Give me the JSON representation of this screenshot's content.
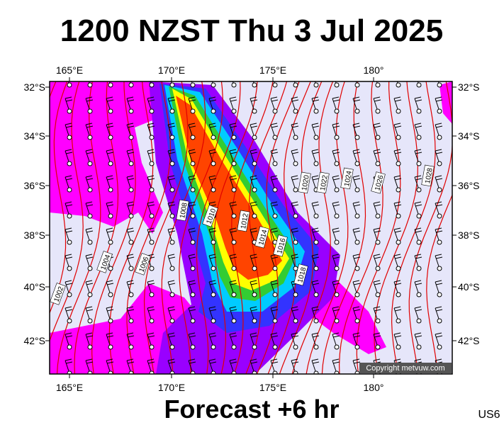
{
  "header": {
    "title": "1200 NZST Thu 3 Jul 2025"
  },
  "map": {
    "top_labels": [
      "165°E",
      "170°E",
      "175°E",
      "180°"
    ],
    "bottom_labels": [
      "165°E",
      "170°E",
      "175°E",
      "180°"
    ],
    "left_labels": [
      "32°S",
      "34°S",
      "36°S",
      "38°S",
      "40°S",
      "42°S"
    ],
    "right_labels": [
      "32°S",
      "34°S",
      "36°S",
      "38°S",
      "40°S",
      "42°S"
    ],
    "isobar_labels": [
      "1002",
      "1004",
      "1006",
      "1008",
      "1010",
      "1012",
      "1014",
      "1016",
      "1018",
      "1020",
      "1022",
      "1024",
      "1026",
      "1028"
    ],
    "copyright": "Copyright metvuw.com"
  },
  "footer": {
    "title": "Forecast +6 hr",
    "code": "US6"
  }
}
